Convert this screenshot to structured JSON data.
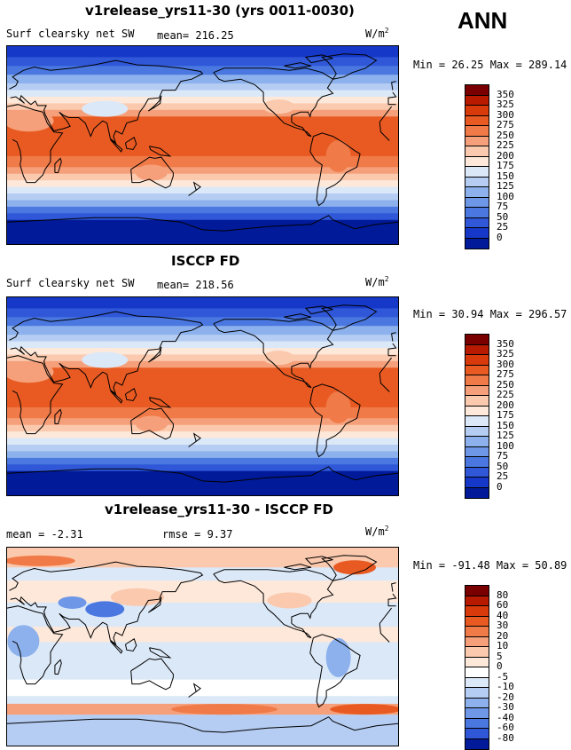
{
  "season": "ANN",
  "panels": [
    {
      "title": "v1release_yrs11-30 (yrs 0011-0030)",
      "left_label": "Surf clearsky net SW",
      "middle_label": "mean= 216.25",
      "unit_base": "W/m",
      "unit_exp": "2",
      "minmax": "Min =  26.25 Max = 289.14",
      "levels": [
        "350",
        "325",
        "300",
        "275",
        "250",
        "225",
        "200",
        "175",
        "150",
        "125",
        "100",
        "75",
        "50",
        "25",
        "0"
      ],
      "kind": "abs"
    },
    {
      "title": "ISCCP FD",
      "left_label": "Surf clearsky net SW",
      "middle_label": "mean= 218.56",
      "unit_base": "W/m",
      "unit_exp": "2",
      "minmax": "Min =  30.94 Max = 296.57",
      "levels": [
        "350",
        "325",
        "300",
        "275",
        "250",
        "225",
        "200",
        "175",
        "150",
        "125",
        "100",
        "75",
        "50",
        "25",
        "0"
      ],
      "kind": "abs"
    },
    {
      "title": "v1release_yrs11-30 - ISCCP FD",
      "left_label": "mean =  -2.31",
      "middle_label": "rmse =   9.37",
      "unit_base": "W/m",
      "unit_exp": "2",
      "minmax": "Min = -91.48 Max =  50.89",
      "levels": [
        "80",
        "60",
        "40",
        "30",
        "20",
        "10",
        "5",
        "0",
        "-5",
        "-10",
        "-20",
        "-30",
        "-40",
        "-60",
        "-80"
      ],
      "kind": "diff"
    }
  ],
  "colors": {
    "abs_scale": [
      "#7a0000",
      "#b81a00",
      "#d93a0c",
      "#e85a22",
      "#f07a48",
      "#f5a07a",
      "#fbc9ad",
      "#fde8da",
      "#dbe8f8",
      "#b5cdf2",
      "#8cb1ec",
      "#6e97e8",
      "#4a78e0",
      "#2f57d8",
      "#1638c8",
      "#001a9a"
    ],
    "diff_scale": [
      "#7a0000",
      "#b81a00",
      "#d93a0c",
      "#e85a22",
      "#f07a48",
      "#f5a07a",
      "#fbc9ad",
      "#fde8da",
      "#ffffff",
      "#dbe8f8",
      "#b5cdf2",
      "#8cb1ec",
      "#6e97e8",
      "#4a78e0",
      "#2f57d8",
      "#001a9a"
    ]
  }
}
